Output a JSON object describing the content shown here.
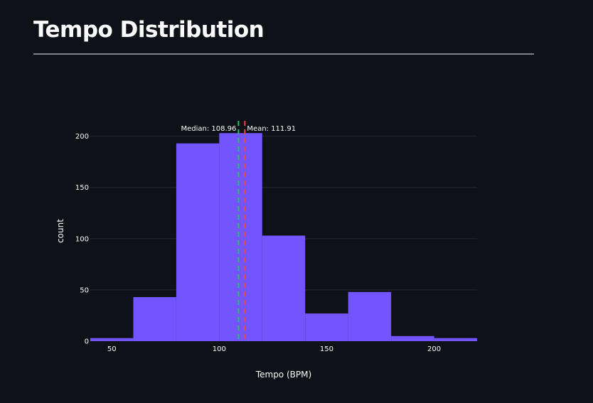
{
  "page": {
    "title": "Tempo Distribution"
  },
  "colors": {
    "background": "#0e1117",
    "bar": "#7355ff",
    "grid": "#262a33",
    "median_line": "#22c55e",
    "mean_line": "#ef4444",
    "text": "#fafafa"
  },
  "chart_data": {
    "type": "bar",
    "subtype": "histogram",
    "title": "",
    "xlabel": "Tempo (BPM)",
    "ylabel": "count",
    "xlim": [
      40,
      220
    ],
    "ylim": [
      0,
      215
    ],
    "x_ticks": [
      50,
      100,
      150,
      200
    ],
    "y_ticks": [
      0,
      50,
      100,
      150,
      200
    ],
    "grid": true,
    "bins": [
      {
        "x0": 40,
        "x1": 60,
        "count": 3
      },
      {
        "x0": 60,
        "x1": 80,
        "count": 43
      },
      {
        "x0": 80,
        "x1": 100,
        "count": 193
      },
      {
        "x0": 100,
        "x1": 120,
        "count": 203
      },
      {
        "x0": 120,
        "x1": 140,
        "count": 103
      },
      {
        "x0": 140,
        "x1": 160,
        "count": 27
      },
      {
        "x0": 160,
        "x1": 180,
        "count": 48
      },
      {
        "x0": 180,
        "x1": 200,
        "count": 5
      },
      {
        "x0": 200,
        "x1": 220,
        "count": 3
      }
    ],
    "reference_lines": [
      {
        "name": "median",
        "label": "Median: 108.96",
        "value": 108.96,
        "color": "#22c55e",
        "style": "dashed",
        "label_side": "left"
      },
      {
        "name": "mean",
        "label": "Mean: 111.91",
        "value": 111.91,
        "color": "#ef4444",
        "style": "dashed",
        "label_side": "right"
      }
    ]
  }
}
